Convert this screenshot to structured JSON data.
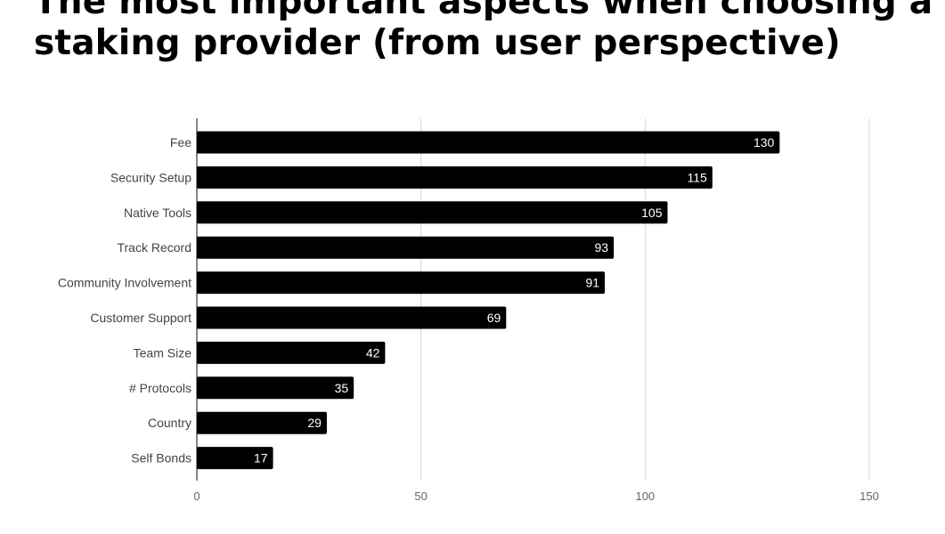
{
  "title": {
    "line1": "The most important aspects when choosing a",
    "line2": "staking provider (from user perspective)"
  },
  "colors": {
    "bar": "#000000",
    "bar_label": "#ffffff",
    "grid": "#d6d6d6",
    "axis_text": "#444444",
    "background": "#ffffff"
  },
  "chart_data": {
    "type": "bar",
    "orientation": "horizontal",
    "categories": [
      "Fee",
      "Security Setup",
      "Native Tools",
      "Track Record",
      "Community Involvement",
      "Customer Support",
      "Team Size",
      "# Protocols",
      "Country",
      "Self Bonds"
    ],
    "values": [
      130,
      115,
      105,
      93,
      91,
      69,
      42,
      35,
      29,
      17
    ],
    "xlim": [
      0,
      150
    ],
    "xticks": [
      0,
      50,
      100,
      150
    ],
    "xlabel": "",
    "ylabel": "",
    "grid": true,
    "data_labels": true
  }
}
